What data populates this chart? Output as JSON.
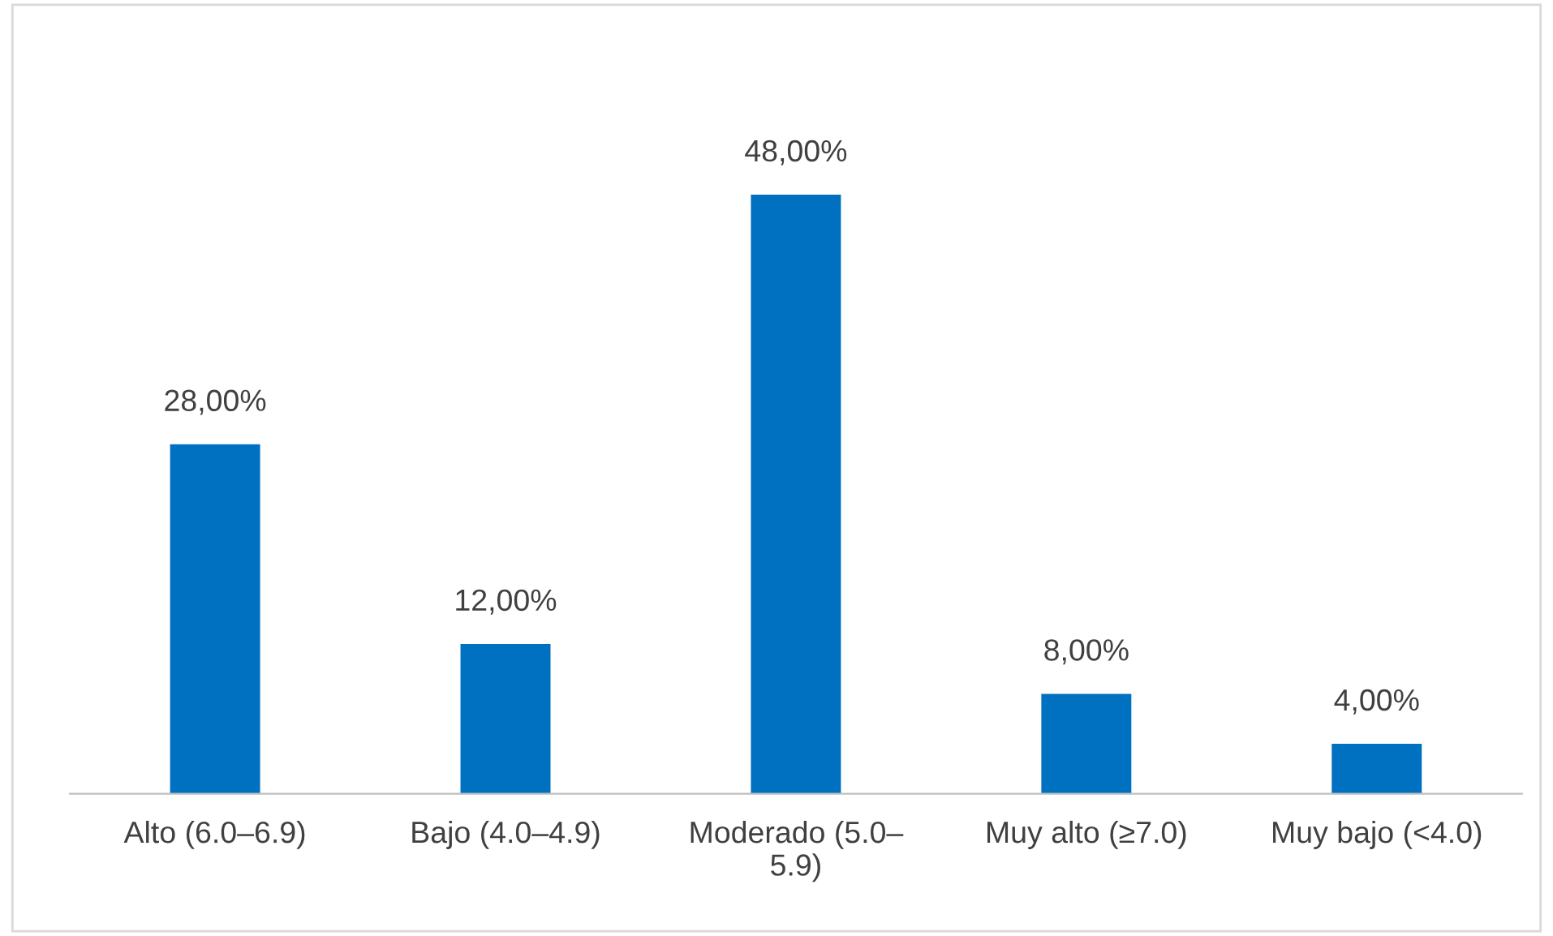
{
  "chart_data": {
    "type": "bar",
    "categories": [
      "Alto (6.0–6.9)",
      "Bajo (4.0–4.9)",
      "Moderado (5.0–5.9)",
      "Muy alto (≥7.0)",
      "Muy bajo (<4.0)"
    ],
    "values": [
      28,
      12,
      48,
      8,
      4
    ],
    "color": "#0070c0",
    "value_labels": [
      "28,00%",
      "12,00%",
      "48,00%",
      "8,00%",
      "4,00%"
    ],
    "grid": false,
    "legend": false
  }
}
